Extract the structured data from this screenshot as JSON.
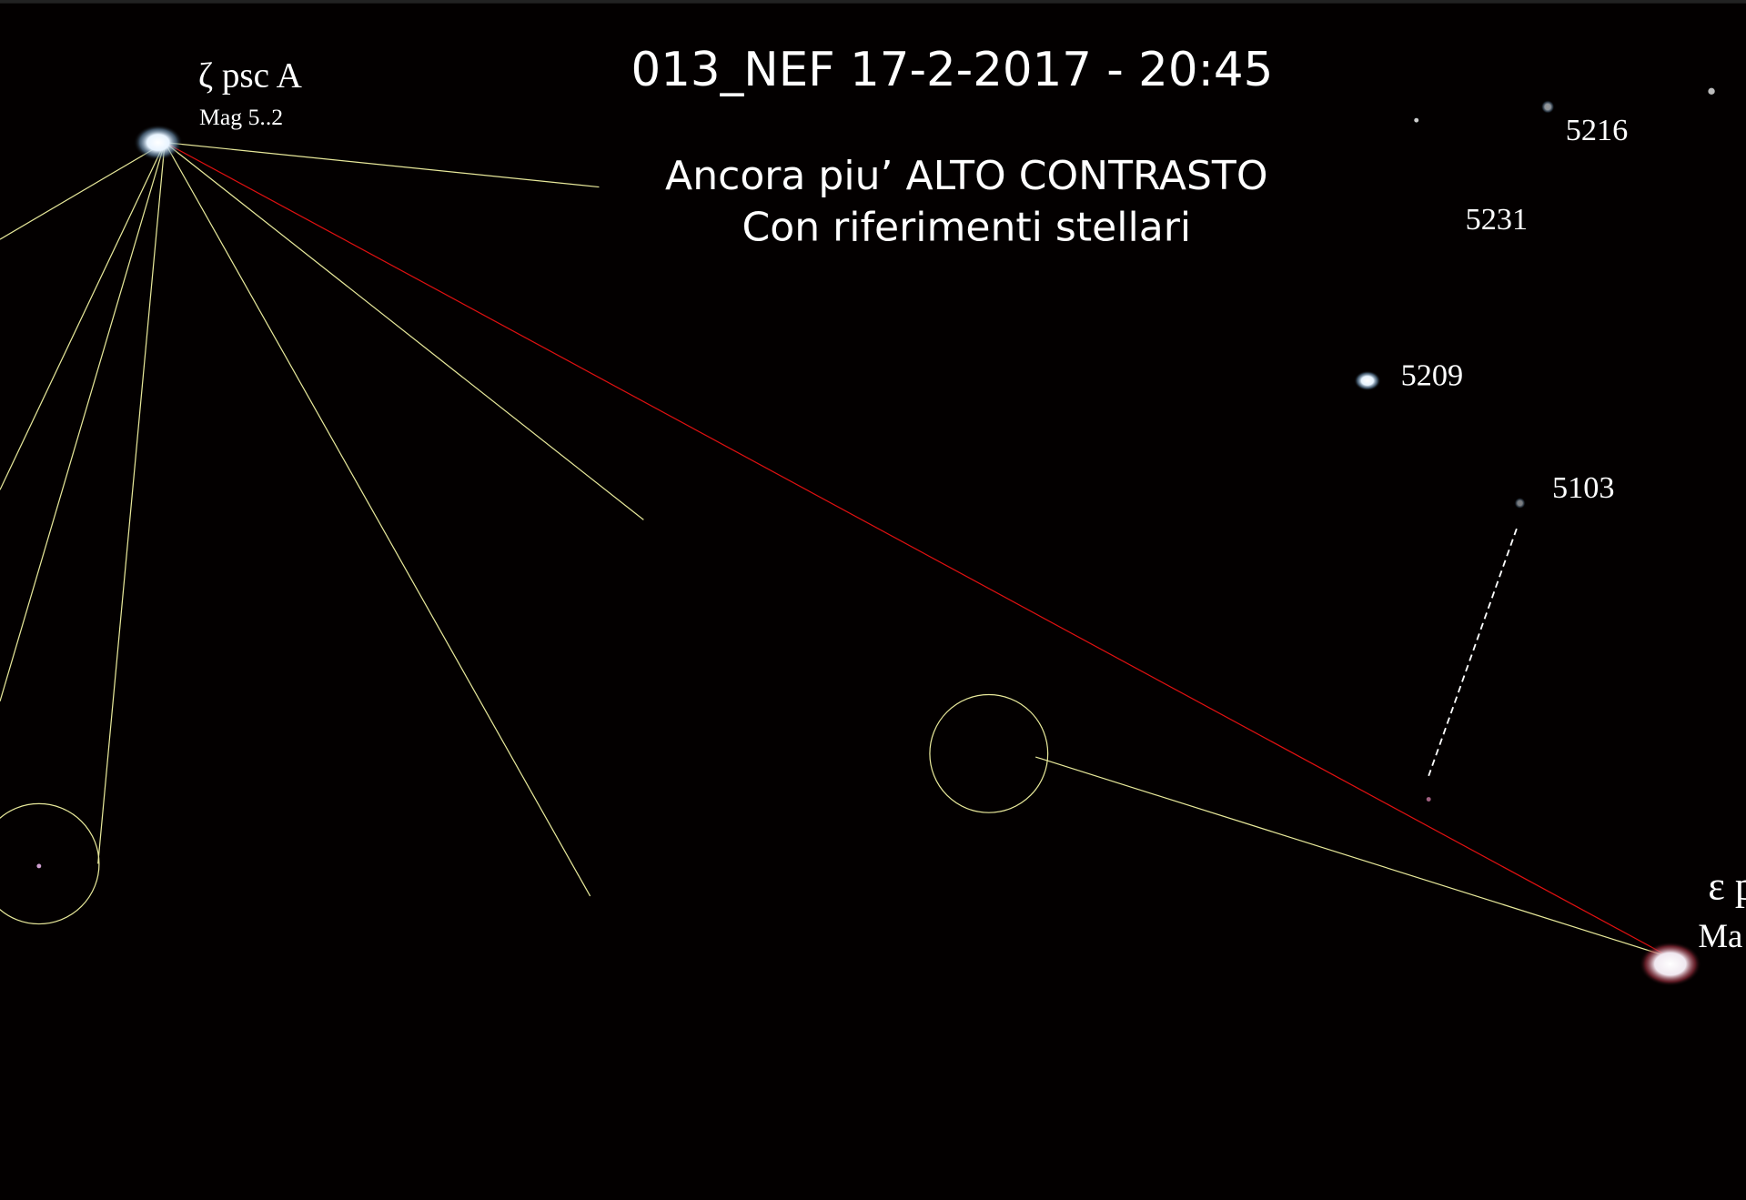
{
  "image": {
    "title": "013_NEF 17-2-2017 - 20:45",
    "subtitle": [
      "Ancora piu’ ALTO CONTRASTO",
      "Con riferimenti stellari"
    ],
    "stars": [
      {
        "label": "ζ psc A",
        "sublabel": "Mag 5..2"
      },
      {
        "label": "5216"
      },
      {
        "label": "5231"
      },
      {
        "label": "5209"
      },
      {
        "label": "5103"
      },
      {
        "label": "ε p",
        "sublabel": "Ma"
      }
    ]
  }
}
